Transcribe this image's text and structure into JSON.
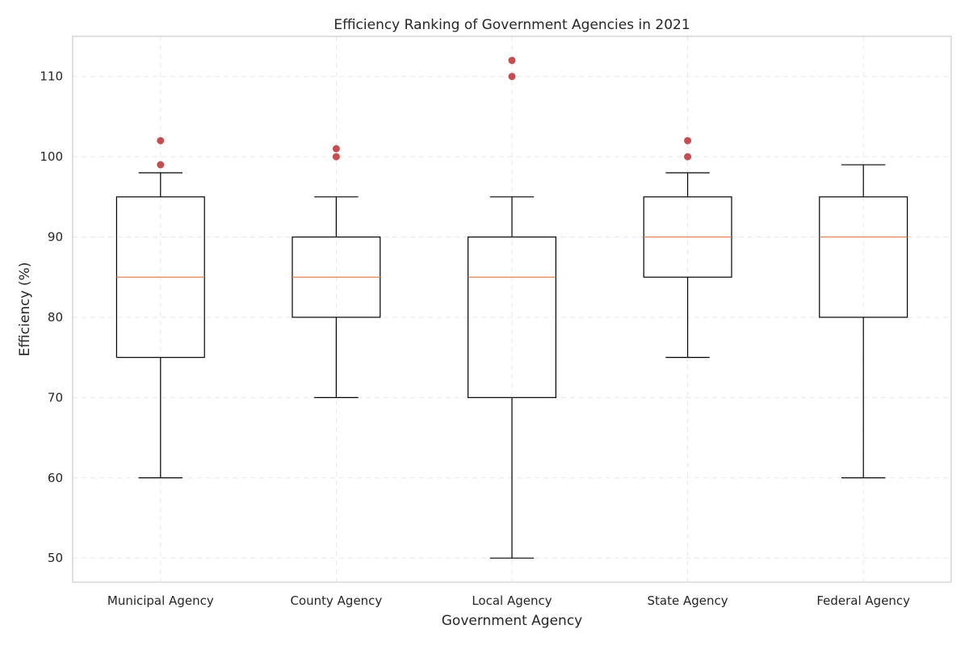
{
  "chart_data": {
    "type": "box",
    "title": "Efficiency Ranking of Government Agencies in 2021",
    "xlabel": "Government Agency",
    "ylabel": "Efficiency (%)",
    "ylim": [
      47,
      115
    ],
    "yticks": [
      50,
      60,
      70,
      80,
      90,
      100,
      110
    ],
    "grid": true,
    "categories": [
      "Municipal Agency",
      "County Agency",
      "Local Agency",
      "State Agency",
      "Federal Agency"
    ],
    "boxes": [
      {
        "whisker_low": 60,
        "q1": 75,
        "median": 85,
        "q3": 95,
        "whisker_high": 98,
        "outliers": [
          99,
          102
        ]
      },
      {
        "whisker_low": 70,
        "q1": 80,
        "median": 85,
        "q3": 90,
        "whisker_high": 95,
        "outliers": [
          100,
          101
        ]
      },
      {
        "whisker_low": 50,
        "q1": 70,
        "median": 85,
        "q3": 90,
        "whisker_high": 95,
        "outliers": [
          110,
          112
        ]
      },
      {
        "whisker_low": 75,
        "q1": 85,
        "median": 90,
        "q3": 95,
        "whisker_high": 98,
        "outliers": [
          100,
          102
        ]
      },
      {
        "whisker_low": 60,
        "q1": 80,
        "median": 90,
        "q3": 95,
        "whisker_high": 99,
        "outliers": []
      }
    ],
    "colors": {
      "median": "#dd8452",
      "outlier": "#c44e52",
      "box": "#000000",
      "grid": "#e8e8e8",
      "frame": "#cccccc"
    }
  }
}
